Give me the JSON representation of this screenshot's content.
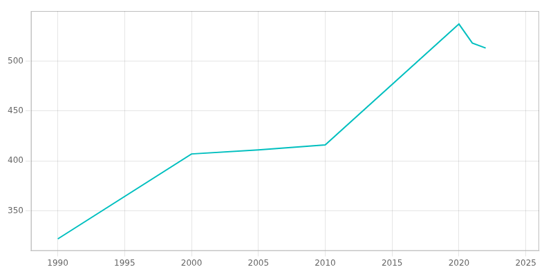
{
  "chart_data": {
    "type": "line",
    "x": [
      1990,
      2000,
      2005,
      2010,
      2020,
      2021,
      2022
    ],
    "values": [
      322,
      407,
      411,
      416,
      537,
      518,
      513
    ],
    "color": "#00BFBF",
    "xlim": [
      1988,
      2026
    ],
    "ylim": [
      310,
      550
    ],
    "xticks": [
      1990,
      1995,
      2000,
      2005,
      2010,
      2015,
      2020,
      2025
    ],
    "yticks": [
      350,
      400,
      450,
      500
    ],
    "grid": true
  }
}
